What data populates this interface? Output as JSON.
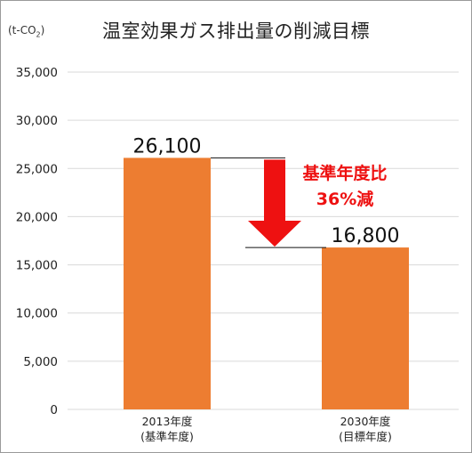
{
  "chart_data": {
    "type": "bar",
    "title": "温室効果ガス排出量の削減目標",
    "unit": {
      "prefix": "(t-CO",
      "subscript": "2",
      "suffix": ")"
    },
    "categories": [
      [
        "2013年度",
        "(基準年度)"
      ],
      [
        "2030年度",
        "(目標年度)"
      ]
    ],
    "values": [
      26100,
      16800
    ],
    "data_labels": [
      "26,100",
      "16,800"
    ],
    "yticks": [
      0,
      5000,
      10000,
      15000,
      20000,
      25000,
      30000,
      35000
    ],
    "ytick_labels": [
      "0",
      "5,000",
      "10,000",
      "15,000",
      "20,000",
      "25,000",
      "30,000",
      "35,000"
    ],
    "ylim": [
      0,
      35000
    ],
    "grid": true,
    "bar_color": "#ed7d31",
    "grid_color": "#d9d9d9",
    "annotation": {
      "lines": [
        "基準年度比",
        "36%減"
      ],
      "color": "#ee1111"
    }
  }
}
